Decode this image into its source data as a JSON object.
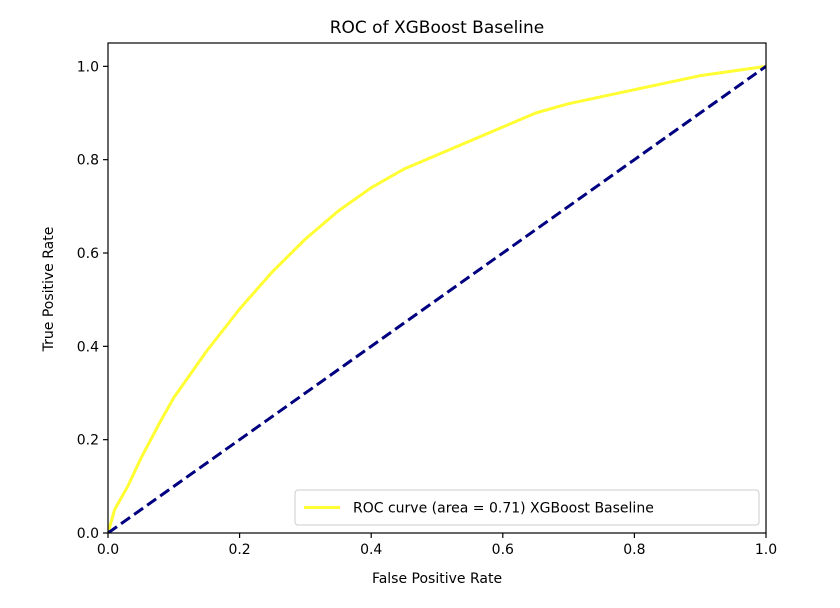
{
  "chart_data": {
    "type": "line",
    "title": "ROC of XGBoost Baseline",
    "xlabel": "False Positive Rate",
    "ylabel": "True Positive Rate",
    "xlim": [
      0.0,
      1.0
    ],
    "ylim": [
      0.0,
      1.05
    ],
    "xticks": [
      "0.0",
      "0.2",
      "0.4",
      "0.6",
      "0.8",
      "1.0"
    ],
    "yticks": [
      "0.0",
      "0.2",
      "0.4",
      "0.6",
      "0.8",
      "1.0"
    ],
    "grid": false,
    "legend_position": "lower-right",
    "series": [
      {
        "name": "ROC curve (area = 0.71) XGBoost Baseline",
        "color": "#ffff33",
        "style": "solid",
        "x": [
          0.0,
          0.01,
          0.03,
          0.05,
          0.08,
          0.1,
          0.12,
          0.15,
          0.2,
          0.25,
          0.3,
          0.35,
          0.4,
          0.45,
          0.5,
          0.55,
          0.6,
          0.65,
          0.7,
          0.75,
          0.8,
          0.85,
          0.9,
          0.95,
          1.0
        ],
        "y": [
          0.0,
          0.05,
          0.1,
          0.16,
          0.24,
          0.29,
          0.33,
          0.39,
          0.48,
          0.56,
          0.63,
          0.69,
          0.74,
          0.78,
          0.81,
          0.84,
          0.87,
          0.9,
          0.92,
          0.935,
          0.95,
          0.965,
          0.98,
          0.99,
          1.0
        ]
      },
      {
        "name": "",
        "color": "#000080",
        "style": "dashed",
        "x": [
          0.0,
          1.0
        ],
        "y": [
          0.0,
          1.0
        ]
      }
    ]
  }
}
